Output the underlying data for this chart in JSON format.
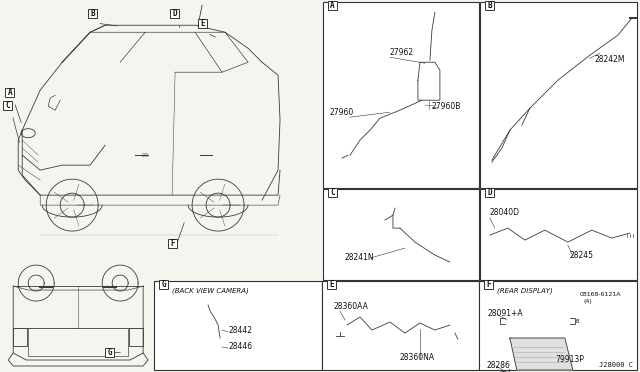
{
  "bg_color": "#f5f5f0",
  "border_color": "#333333",
  "line_color": "#333333",
  "text_color": "#111111",
  "diagram_code": "J28000 C",
  "panel_borders": {
    "A": [
      323,
      2,
      479,
      188
    ],
    "B": [
      480,
      2,
      637,
      188
    ],
    "C": [
      323,
      189,
      479,
      280
    ],
    "D": [
      480,
      189,
      637,
      280
    ],
    "G_panel": [
      154,
      281,
      322,
      370
    ],
    "E": [
      322,
      281,
      479,
      370
    ],
    "F": [
      479,
      281,
      637,
      370
    ]
  }
}
